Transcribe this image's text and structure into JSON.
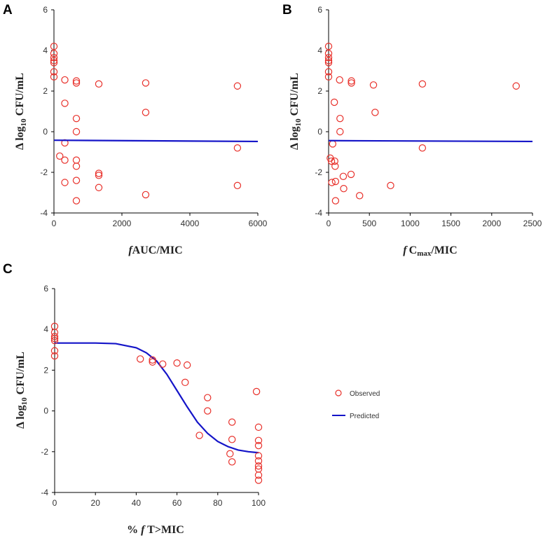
{
  "colors": {
    "observed": "#e8302a",
    "predicted": "#1414c8",
    "axis": "#000000"
  },
  "legend": {
    "observed_label": "Observed",
    "predicted_label": "Predicted"
  },
  "chart_data": [
    {
      "panel": "A",
      "type": "scatter",
      "xlabel_prefix": "f",
      "xlabel_main": "AUC/MIC",
      "ylabel_main": "Δ log",
      "ylabel_sub": "10",
      "ylabel_tail": " CFU/mL",
      "xlim": [
        0,
        6000
      ],
      "ylim": [
        -4,
        6
      ],
      "xticks": [
        "0",
        "2000",
        "4000",
        "6000"
      ],
      "xtick_values": [
        0,
        2000,
        4000,
        6000
      ],
      "yticks": [
        "-4",
        "-2",
        "0",
        "2",
        "4",
        "6"
      ],
      "ytick_values": [
        -4,
        -2,
        0,
        2,
        4,
        6
      ],
      "observed": [
        [
          0,
          4.2
        ],
        [
          0,
          3.85
        ],
        [
          0,
          3.65
        ],
        [
          0,
          3.5
        ],
        [
          0,
          3.4
        ],
        [
          0,
          2.95
        ],
        [
          0,
          2.7
        ],
        [
          320,
          2.55
        ],
        [
          320,
          1.4
        ],
        [
          320,
          -0.55
        ],
        [
          320,
          -1.4
        ],
        [
          320,
          -2.5
        ],
        [
          170,
          -1.2
        ],
        [
          660,
          2.5
        ],
        [
          660,
          2.4
        ],
        [
          660,
          0.65
        ],
        [
          660,
          0.0
        ],
        [
          660,
          -1.4
        ],
        [
          660,
          -1.7
        ],
        [
          660,
          -2.4
        ],
        [
          660,
          -3.4
        ],
        [
          1320,
          2.35
        ],
        [
          1320,
          -2.05
        ],
        [
          1320,
          -2.15
        ],
        [
          1320,
          -2.75
        ],
        [
          2700,
          2.4
        ],
        [
          2700,
          0.95
        ],
        [
          2700,
          -3.1
        ],
        [
          5400,
          2.25
        ],
        [
          5400,
          -0.8
        ],
        [
          5400,
          -2.65
        ]
      ],
      "predicted": [
        [
          0,
          -0.42
        ],
        [
          6000,
          -0.48
        ]
      ]
    },
    {
      "panel": "B",
      "type": "scatter",
      "xlabel_prefix": "f",
      "xlabel_main": "C",
      "xlabel_sub": "max",
      "xlabel_tail": "/MIC",
      "ylabel_main": "Δ log",
      "ylabel_sub": "10",
      "ylabel_tail": " CFU/mL",
      "xlim": [
        0,
        2500
      ],
      "ylim": [
        -4,
        6
      ],
      "xticks": [
        "0",
        "500",
        "1000",
        "1500",
        "2000",
        "2500"
      ],
      "xtick_values": [
        0,
        500,
        1000,
        1500,
        2000,
        2500
      ],
      "yticks": [
        "-4",
        "-2",
        "0",
        "2",
        "4",
        "6"
      ],
      "ytick_values": [
        -4,
        -2,
        0,
        2,
        4,
        6
      ],
      "observed": [
        [
          0,
          4.2
        ],
        [
          0,
          3.85
        ],
        [
          0,
          3.65
        ],
        [
          0,
          3.5
        ],
        [
          0,
          3.4
        ],
        [
          0,
          2.95
        ],
        [
          0,
          2.7
        ],
        [
          20,
          -1.3
        ],
        [
          35,
          -1.45
        ],
        [
          50,
          -0.6
        ],
        [
          40,
          -2.5
        ],
        [
          70,
          1.45
        ],
        [
          75,
          -1.45
        ],
        [
          80,
          -1.7
        ],
        [
          85,
          -2.45
        ],
        [
          85,
          -3.4
        ],
        [
          135,
          2.55
        ],
        [
          140,
          0.65
        ],
        [
          140,
          0.0
        ],
        [
          180,
          -2.2
        ],
        [
          185,
          -2.8
        ],
        [
          280,
          2.5
        ],
        [
          280,
          2.4
        ],
        [
          275,
          -2.1
        ],
        [
          380,
          -3.15
        ],
        [
          550,
          2.3
        ],
        [
          570,
          0.95
        ],
        [
          760,
          -2.65
        ],
        [
          1150,
          2.35
        ],
        [
          1150,
          -0.8
        ],
        [
          2300,
          2.25
        ]
      ],
      "predicted": [
        [
          0,
          -0.44
        ],
        [
          2500,
          -0.48
        ]
      ]
    },
    {
      "panel": "C",
      "type": "scatter",
      "xlabel_prefix": "% ",
      "xlabel_italic": "f",
      "xlabel_main": " T>MIC",
      "ylabel_main": "Δ log",
      "ylabel_sub": "10",
      "ylabel_tail": " CFU/mL",
      "xlim": [
        0,
        100
      ],
      "ylim": [
        -4,
        6
      ],
      "xticks": [
        "0",
        "20",
        "40",
        "60",
        "80",
        "100"
      ],
      "xtick_values": [
        0,
        20,
        40,
        60,
        80,
        100
      ],
      "yticks": [
        "-4",
        "-2",
        "0",
        "2",
        "4",
        "6"
      ],
      "ytick_values": [
        -4,
        -2,
        0,
        2,
        4,
        6
      ],
      "observed": [
        [
          0,
          4.15
        ],
        [
          0,
          3.85
        ],
        [
          0,
          3.65
        ],
        [
          0,
          3.55
        ],
        [
          0,
          3.45
        ],
        [
          0,
          2.95
        ],
        [
          0,
          2.7
        ],
        [
          42,
          2.55
        ],
        [
          48,
          2.5
        ],
        [
          48,
          2.4
        ],
        [
          53,
          2.3
        ],
        [
          60,
          2.35
        ],
        [
          65,
          2.25
        ],
        [
          64,
          1.4
        ],
        [
          75,
          0.65
        ],
        [
          75,
          0.0
        ],
        [
          71,
          -1.2
        ],
        [
          87,
          -0.55
        ],
        [
          87,
          -1.4
        ],
        [
          86,
          -2.1
        ],
        [
          87,
          -2.5
        ],
        [
          99,
          0.95
        ],
        [
          100,
          -0.8
        ],
        [
          100,
          -1.45
        ],
        [
          100,
          -1.7
        ],
        [
          100,
          -2.2
        ],
        [
          100,
          -2.45
        ],
        [
          100,
          -2.7
        ],
        [
          100,
          -2.85
        ],
        [
          100,
          -3.15
        ],
        [
          100,
          -3.4
        ]
      ],
      "predicted": [
        [
          0,
          3.33
        ],
        [
          10,
          3.33
        ],
        [
          20,
          3.33
        ],
        [
          30,
          3.3
        ],
        [
          40,
          3.1
        ],
        [
          45,
          2.85
        ],
        [
          50,
          2.45
        ],
        [
          55,
          1.8
        ],
        [
          60,
          1.0
        ],
        [
          65,
          0.2
        ],
        [
          70,
          -0.55
        ],
        [
          75,
          -1.1
        ],
        [
          80,
          -1.5
        ],
        [
          85,
          -1.75
        ],
        [
          90,
          -1.92
        ],
        [
          95,
          -2.0
        ],
        [
          100,
          -2.05
        ]
      ]
    }
  ]
}
